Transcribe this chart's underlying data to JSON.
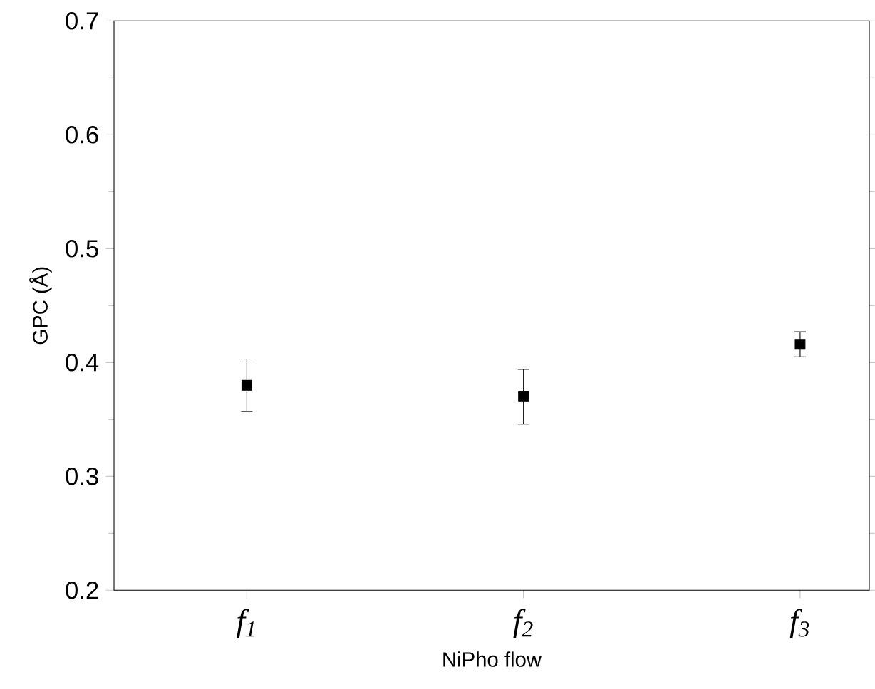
{
  "chart_data": {
    "type": "scatter",
    "xlabel": "NiPho flow",
    "ylabel": "GPC (Å)",
    "categories": [
      "f$_{1}$",
      "f$_{2}$",
      "f$_{3}$"
    ],
    "values": [
      0.38,
      0.37,
      0.416
    ],
    "errors": [
      0.023,
      0.024,
      0.011
    ],
    "color": "#000000",
    "marker": "square",
    "ylim": [
      0.2,
      0.7
    ],
    "yticks": [
      {
        "value": 0.2,
        "label": "0.2"
      },
      {
        "value": 0.3,
        "label": "0.3"
      },
      {
        "value": 0.4,
        "label": "0.4"
      },
      {
        "value": 0.5,
        "label": "0.5"
      },
      {
        "value": 0.6,
        "label": "0.6"
      },
      {
        "value": 0.7,
        "label": "0.7"
      }
    ],
    "grid": false
  }
}
